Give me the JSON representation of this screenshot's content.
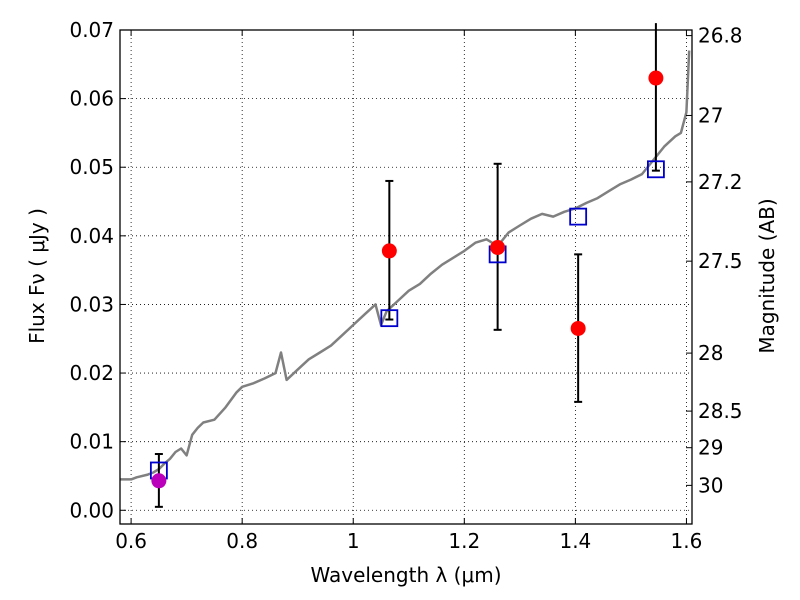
{
  "chart_data": {
    "type": "scatter",
    "xlabel": "Wavelength  λ (μm)",
    "ylabel": "Flux  Fν  ( μJy )",
    "y2label": "Magnitude (AB)",
    "xlim": [
      0.58,
      1.61
    ],
    "ylim": [
      -0.002,
      0.07
    ],
    "grid": true,
    "x_ticks": [
      {
        "value": 0.6,
        "label": "0.6"
      },
      {
        "value": 0.8,
        "label": "0.8"
      },
      {
        "value": 1.0,
        "label": "1"
      },
      {
        "value": 1.2,
        "label": "1.2"
      },
      {
        "value": 1.4,
        "label": "1.4"
      },
      {
        "value": 1.6,
        "label": "1.6"
      }
    ],
    "y_ticks": [
      {
        "value": 0.0,
        "label": "0.00"
      },
      {
        "value": 0.01,
        "label": "0.01"
      },
      {
        "value": 0.02,
        "label": "0.02"
      },
      {
        "value": 0.03,
        "label": "0.03"
      },
      {
        "value": 0.04,
        "label": "0.04"
      },
      {
        "value": 0.05,
        "label": "0.05"
      },
      {
        "value": 0.06,
        "label": "0.06"
      },
      {
        "value": 0.07,
        "label": "0.07"
      }
    ],
    "y2_ticks": [
      {
        "mag": 26.8,
        "label": "26.8"
      },
      {
        "mag": 27.0,
        "label": "27"
      },
      {
        "mag": 27.2,
        "label": "27.2"
      },
      {
        "mag": 27.5,
        "label": "27.5"
      },
      {
        "mag": 28.0,
        "label": "28"
      },
      {
        "mag": 28.5,
        "label": "28.5"
      },
      {
        "mag": 29.0,
        "label": "29"
      },
      {
        "mag": 30.0,
        "label": "30"
      }
    ],
    "colors": {
      "model": "#808080",
      "observed": "#ff0000",
      "upper_limit": "#bb00bb",
      "model_photometry": "#0000cc",
      "errorbar": "#000000"
    },
    "model_spectrum": {
      "x": [
        0.58,
        0.6,
        0.61,
        0.63,
        0.64,
        0.65,
        0.66,
        0.67,
        0.68,
        0.69,
        0.7,
        0.71,
        0.72,
        0.73,
        0.75,
        0.77,
        0.79,
        0.8,
        0.82,
        0.84,
        0.86,
        0.87,
        0.88,
        0.9,
        0.92,
        0.94,
        0.96,
        0.98,
        1.0,
        1.02,
        1.04,
        1.05,
        1.06,
        1.08,
        1.1,
        1.12,
        1.14,
        1.16,
        1.18,
        1.2,
        1.22,
        1.24,
        1.26,
        1.28,
        1.3,
        1.32,
        1.34,
        1.36,
        1.38,
        1.4,
        1.42,
        1.44,
        1.46,
        1.48,
        1.5,
        1.52,
        1.54,
        1.56,
        1.58,
        1.59,
        1.6,
        1.605
      ],
      "y": [
        0.0045,
        0.0045,
        0.0048,
        0.0052,
        0.0055,
        0.006,
        0.0068,
        0.0075,
        0.0085,
        0.009,
        0.008,
        0.011,
        0.012,
        0.0128,
        0.0132,
        0.015,
        0.0172,
        0.018,
        0.0185,
        0.0192,
        0.02,
        0.023,
        0.019,
        0.0205,
        0.022,
        0.023,
        0.024,
        0.0255,
        0.027,
        0.0285,
        0.03,
        0.027,
        0.029,
        0.0305,
        0.032,
        0.033,
        0.0345,
        0.0358,
        0.0368,
        0.0378,
        0.039,
        0.0395,
        0.0385,
        0.0405,
        0.0415,
        0.0425,
        0.0432,
        0.0428,
        0.0435,
        0.044,
        0.0448,
        0.0455,
        0.0465,
        0.0475,
        0.0482,
        0.049,
        0.051,
        0.053,
        0.0545,
        0.055,
        0.058,
        0.067
      ]
    },
    "observed": [
      {
        "x": 1.065,
        "y": 0.0378,
        "err_low": 0.0278,
        "err_high": 0.048
      },
      {
        "x": 1.26,
        "y": 0.0383,
        "err_low": 0.0263,
        "err_high": 0.0505
      },
      {
        "x": 1.405,
        "y": 0.0265,
        "err_low": 0.0158,
        "err_high": 0.0373
      },
      {
        "x": 1.545,
        "y": 0.063,
        "err_low": 0.0495,
        "err_high": 0.071
      }
    ],
    "upper_limit_point": {
      "x": 0.65,
      "y": 0.0043,
      "err_low": 0.0005,
      "err_high": 0.0082
    },
    "model_photometry": [
      {
        "x": 0.65,
        "y": 0.0058
      },
      {
        "x": 1.065,
        "y": 0.028
      },
      {
        "x": 1.26,
        "y": 0.0373
      },
      {
        "x": 1.405,
        "y": 0.0428
      },
      {
        "x": 1.545,
        "y": 0.0497
      }
    ]
  }
}
